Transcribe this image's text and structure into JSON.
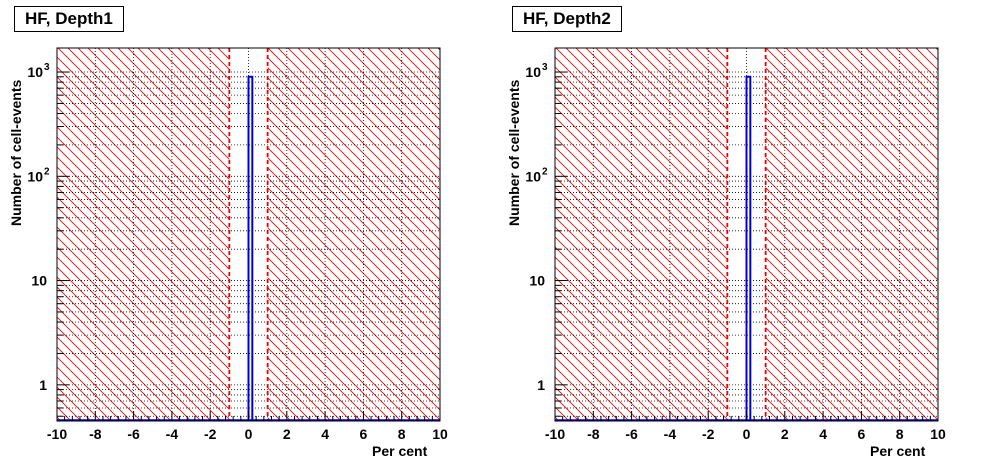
{
  "chart_data": [
    {
      "type": "bar",
      "title": "HF, Depth1",
      "xlabel": "Per cent",
      "ylabel": "Number of cell-events",
      "xlim": [
        -10,
        10
      ],
      "ylim": [
        0.45,
        1700
      ],
      "yscale": "log",
      "grid": true,
      "x_ticks": [
        "-10",
        "-8",
        "-6",
        "-4",
        "-2",
        "0",
        "2",
        "4",
        "6",
        "8",
        "10"
      ],
      "y_ticks": [
        "1",
        "10",
        "10^2",
        "10^3"
      ],
      "bins": [
        {
          "x_low": 0.0,
          "x_high": 0.2,
          "value": 900
        }
      ],
      "thresholds": [
        -1,
        1
      ],
      "shaded_regions": [
        [
          -10,
          -1
        ],
        [
          1,
          10
        ]
      ],
      "colors": {
        "histogram": "#0000cc",
        "threshold": "#ee0000",
        "hatch": "#ee0000"
      }
    },
    {
      "type": "bar",
      "title": "HF, Depth2",
      "xlabel": "Per cent",
      "ylabel": "Number of cell-events",
      "xlim": [
        -10,
        10
      ],
      "ylim": [
        0.45,
        1700
      ],
      "yscale": "log",
      "grid": true,
      "x_ticks": [
        "-10",
        "-8",
        "-6",
        "-4",
        "-2",
        "0",
        "2",
        "4",
        "6",
        "8",
        "10"
      ],
      "y_ticks": [
        "1",
        "10",
        "10^2",
        "10^3"
      ],
      "bins": [
        {
          "x_low": 0.0,
          "x_high": 0.2,
          "value": 900
        }
      ],
      "thresholds": [
        -1,
        1
      ],
      "shaded_regions": [
        [
          -10,
          -1
        ],
        [
          1,
          10
        ]
      ],
      "colors": {
        "histogram": "#0000cc",
        "threshold": "#ee0000",
        "hatch": "#ee0000"
      }
    }
  ]
}
